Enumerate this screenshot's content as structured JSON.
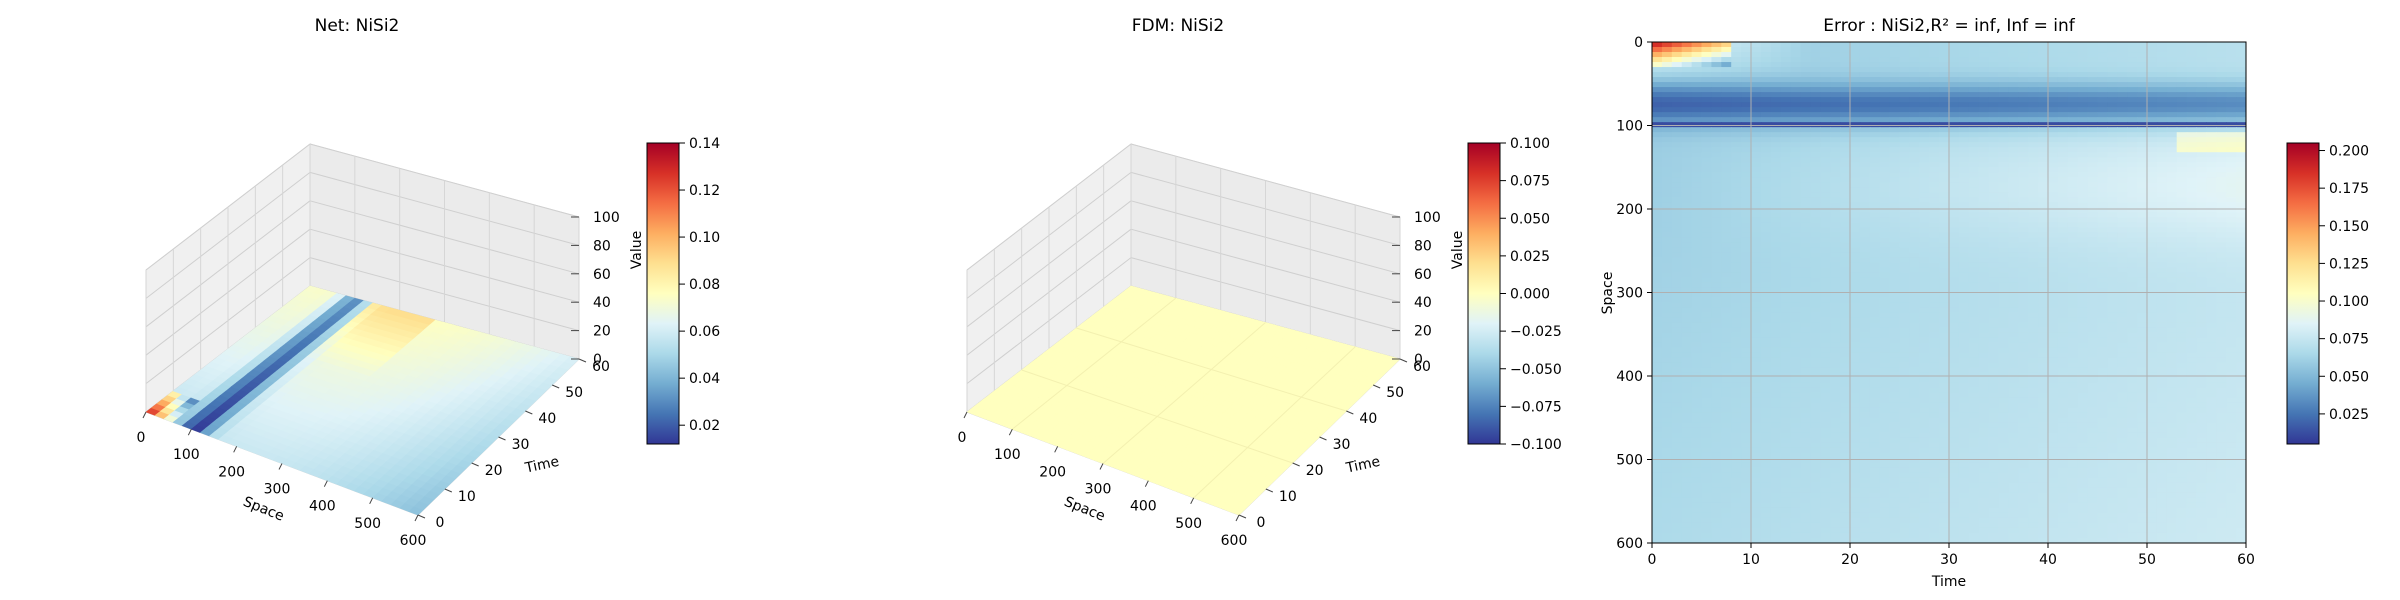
{
  "figure": {
    "panel1_title": "Net: NiSi2",
    "panel2_title": "FDM: NiSi2",
    "panel3_title": "Error : NiSi2,R² = inf, Inf = inf"
  },
  "chart_data": [
    {
      "type": "surface3d",
      "title": "Net: NiSi2",
      "xlabel": "Space",
      "ylabel": "Time",
      "zlabel": "Value",
      "xlim": [
        0,
        600
      ],
      "ylim": [
        0,
        60
      ],
      "zlim": [
        0,
        100
      ],
      "xticks": [
        "0",
        "100",
        "200",
        "300",
        "400",
        "500",
        "600"
      ],
      "yticks": [
        "0",
        "10",
        "20",
        "30",
        "40",
        "50",
        "60"
      ],
      "zticks": [
        "0",
        "20",
        "40",
        "60",
        "80",
        "100"
      ],
      "colorbar": {
        "colormap": "RdYlBu_r",
        "min": 0.012,
        "max": 0.14,
        "ticks": [
          "0.02",
          "0.04",
          "0.06",
          "0.08",
          "0.10",
          "0.12",
          "0.14"
        ]
      }
    },
    {
      "type": "surface3d",
      "title": "FDM: NiSi2",
      "xlabel": "Space",
      "ylabel": "Time",
      "zlabel": "Value",
      "xlim": [
        0,
        600
      ],
      "ylim": [
        0,
        60
      ],
      "zlim": [
        0,
        100
      ],
      "xticks": [
        "0",
        "100",
        "200",
        "300",
        "400",
        "500",
        "600"
      ],
      "yticks": [
        "0",
        "10",
        "20",
        "30",
        "40",
        "50",
        "60"
      ],
      "zticks": [
        "0",
        "20",
        "40",
        "60",
        "80",
        "100"
      ],
      "surface_value": 0.0,
      "colorbar": {
        "colormap": "RdYlBu_r",
        "min": -0.1,
        "max": 0.1,
        "ticks": [
          "0.100",
          "0.075",
          "0.050",
          "0.025",
          "0.000",
          "−0.025",
          "−0.050",
          "−0.075",
          "−0.100"
        ]
      }
    },
    {
      "type": "heatmap",
      "title": "Error : NiSi2,R² = inf, Inf = inf",
      "xlabel": "Time",
      "ylabel": "Space",
      "xlim": [
        0,
        60
      ],
      "ylim": [
        600,
        0
      ],
      "xticks": [
        "0",
        "10",
        "20",
        "30",
        "40",
        "50",
        "60"
      ],
      "yticks": [
        "0",
        "100",
        "200",
        "300",
        "400",
        "500",
        "600"
      ],
      "grid": true,
      "colorbar": {
        "colormap": "RdYlBu_r",
        "min": 0.005,
        "max": 0.205,
        "ticks": [
          "0.200",
          "0.175",
          "0.150",
          "0.125",
          "0.100",
          "0.075",
          "0.050",
          "0.025"
        ]
      }
    }
  ]
}
